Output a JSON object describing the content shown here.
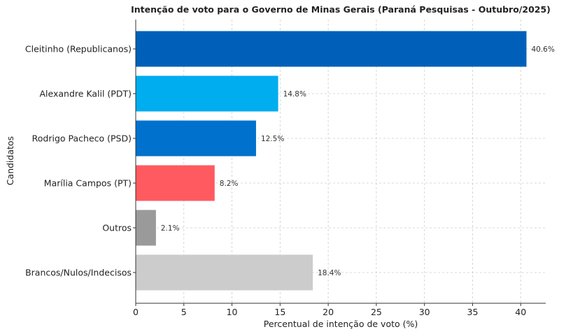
{
  "chart_data": {
    "type": "bar",
    "orientation": "horizontal",
    "title": "Intenção de voto para o Governo de Minas Gerais (Paraná Pesquisas - Outubro/2025)",
    "xlabel": "Percentual de intenção de voto (%)",
    "ylabel": "Candidatos",
    "categories": [
      "Cleitinho (Republicanos)",
      "Alexandre Kalil (PDT)",
      "Rodrigo Pacheco (PSD)",
      "Marília Campos (PT)",
      "Outros",
      "Brancos/Nulos/Indecisos"
    ],
    "values": [
      40.6,
      14.8,
      12.5,
      8.2,
      2.1,
      18.4
    ],
    "value_labels": [
      "40.6%",
      "14.8%",
      "12.5%",
      "8.2%",
      "2.1%",
      "18.4%"
    ],
    "colors": [
      "#0060b9",
      "#00adef",
      "#0072ce",
      "#ff5a5f",
      "#9a9a9a",
      "#cccccc"
    ],
    "xlim": [
      0,
      42.6
    ],
    "xticks": [
      0,
      5,
      10,
      15,
      20,
      25,
      30,
      35,
      40
    ],
    "grid": true
  }
}
